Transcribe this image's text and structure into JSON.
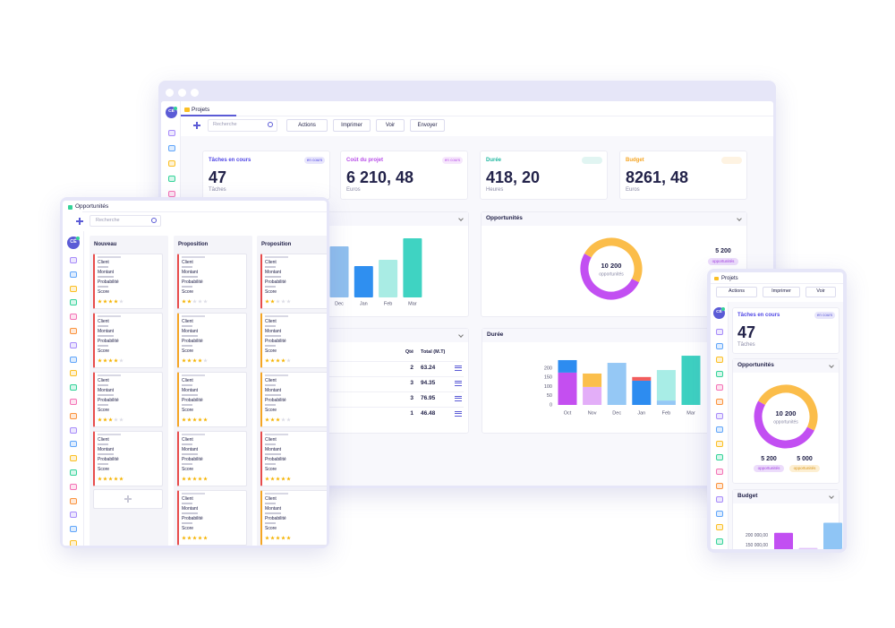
{
  "main": {
    "tab": "Projets",
    "avatar": "CÉ",
    "search": "Recherche",
    "buttons": [
      "Actions",
      "Imprimer",
      "Voir",
      "Envoyer"
    ],
    "kpis": [
      {
        "title": "Tâches en cours",
        "badge": "en cours",
        "value": "47",
        "unit": "Tâches",
        "color": "#4f46e5"
      },
      {
        "title": "Coût du projet",
        "badge": "en cours",
        "value": "6 210, 48",
        "unit": "Euros",
        "color": "#b84ee8"
      },
      {
        "title": "Durée",
        "value": "418, 20",
        "unit": "Heures",
        "color": "#20b7a0"
      },
      {
        "title": "Budget",
        "value": "8261, 48",
        "unit": "Euros",
        "color": "#f5a524"
      }
    ],
    "bar_chart": {
      "categories": [
        "Dec",
        "Jan",
        "Feb",
        "Mar"
      ],
      "values": [
        57,
        35,
        42,
        66
      ],
      "colors": [
        "#8fbfee",
        "#2f8ff0",
        "#a9ece4",
        "#3fd3c2"
      ],
      "ylim": [
        0,
        70
      ]
    },
    "opportunities": {
      "title": "Opportunités",
      "total": "10 200",
      "total_label": "opportunités",
      "values": [
        5200,
        5000
      ],
      "colors": [
        "#c24ff2",
        "#fbbd4a"
      ],
      "side_value": "5 200",
      "side_label": "opportunités"
    },
    "table": {
      "headers": [
        "Qté",
        "Total (M.T)"
      ],
      "rows": [
        [
          2,
          63.24
        ],
        [
          3,
          94.35
        ],
        [
          3,
          76.95
        ],
        [
          1,
          46.48
        ]
      ]
    },
    "duration": {
      "title": "Durée",
      "categories": [
        "Oct",
        "Nov",
        "Dec",
        "Jan",
        "Feb",
        "Mar"
      ],
      "ylim": [
        0,
        270
      ],
      "yticks": [
        0,
        50,
        100,
        150,
        200
      ],
      "series": [
        {
          "color": "#c44ff0",
          "values": [
            176,
            null,
            null,
            null,
            null,
            null
          ]
        },
        {
          "color": "#e3aef8",
          "values": [
            null,
            98,
            null,
            null,
            null,
            null
          ]
        },
        {
          "color": "#2d8cf0",
          "values": [
            68,
            null,
            null,
            132,
            null,
            null
          ]
        },
        {
          "color": "#95c8f5",
          "values": [
            null,
            null,
            229,
            null,
            24,
            null
          ]
        },
        {
          "color": "#fbbf4c",
          "values": [
            null,
            73,
            null,
            null,
            null,
            null
          ]
        },
        {
          "color": "#f25c5c",
          "values": [
            null,
            null,
            null,
            20,
            null,
            null
          ]
        },
        {
          "color": "#a8ede6",
          "values": [
            null,
            null,
            null,
            null,
            166,
            null
          ]
        },
        {
          "color": "#3dd1c1",
          "values": [
            null,
            null,
            null,
            null,
            null,
            268
          ]
        }
      ]
    }
  },
  "tablet": {
    "tab": "Opportunités",
    "avatar": "CÉ",
    "search": "Recherche",
    "fields": [
      "Client",
      "Montant",
      "Probabilité",
      "Score"
    ],
    "columns": [
      {
        "title": "Nouveau",
        "cards": [
          {
            "score": 4,
            "accent": "#e84c4c"
          },
          {
            "score": 4,
            "accent": "#e84c4c"
          },
          {
            "score": 3,
            "accent": "#e84c4c"
          },
          {
            "score": 5,
            "accent": "#e84c4c"
          }
        ]
      },
      {
        "title": "Proposition",
        "cards": [
          {
            "score": 2,
            "accent": "#e84c4c"
          },
          {
            "score": 4,
            "accent": "#f5a524"
          },
          {
            "score": 5,
            "accent": "#f5a524"
          },
          {
            "score": 5,
            "accent": "#e84c4c"
          },
          {
            "score": 5,
            "accent": "#e84c4c"
          }
        ]
      },
      {
        "title": "Proposition",
        "cards": [
          {
            "score": 2,
            "accent": "#e84c4c"
          },
          {
            "score": 4,
            "accent": "#f5a524"
          },
          {
            "score": 3,
            "accent": "#f5a524"
          },
          {
            "score": 5,
            "accent": "#e84c4c"
          },
          {
            "score": 5,
            "accent": "#f5a524"
          }
        ]
      }
    ]
  },
  "phone": {
    "tab": "Projets",
    "avatar": "CÉ",
    "buttons": [
      "Actions",
      "Imprimer",
      "Voir"
    ],
    "kpi": {
      "title": "Tâches en cours",
      "badge": "en cours",
      "value": "47",
      "unit": "Tâches"
    },
    "opportunities": {
      "title": "Opportunités",
      "total": "10 200",
      "total_label": "opportunités",
      "values": [
        5200,
        5000
      ],
      "value_labels": [
        "5 200",
        "5 000"
      ],
      "labels": [
        "opportunités",
        "opportunités"
      ],
      "colors": [
        "#c24ff2",
        "#fbbd4a"
      ]
    },
    "budget": {
      "title": "Budget",
      "ylim": [
        130000,
        280000
      ],
      "yticks": [
        {
          "value": 200000,
          "label": "200 000,00"
        },
        {
          "value": 150000,
          "label": "150 000,00"
        }
      ],
      "values": [
        213000,
        136000,
        264000
      ],
      "colors": [
        "#c24ff2",
        "#e3c3fa",
        "#8fc5f5"
      ]
    }
  }
}
